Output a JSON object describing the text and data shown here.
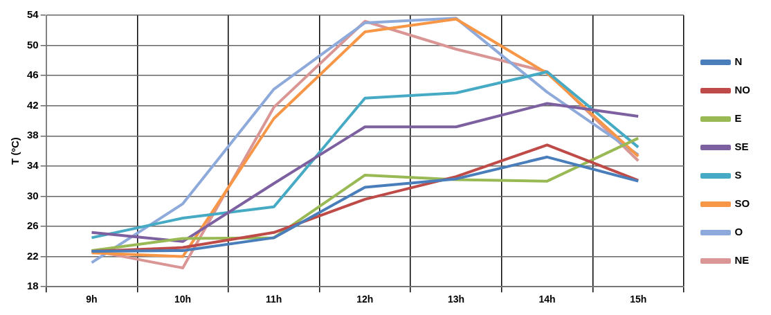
{
  "chart_data": {
    "type": "line",
    "ylabel": "T (ºC)",
    "categories": [
      "9h",
      "10h",
      "11h",
      "12h",
      "13h",
      "14h",
      "15h"
    ],
    "ylim": [
      18,
      54
    ],
    "yticks": [
      18,
      22,
      26,
      30,
      34,
      38,
      42,
      46,
      50,
      54
    ],
    "grid": true,
    "legend": "right",
    "marker": "none",
    "line_style": "solid",
    "series": [
      {
        "name": "N",
        "color": "#4a7ebb",
        "values": [
          22.7,
          22.8,
          24.5,
          31.2,
          32.3,
          35.2,
          32.0
        ]
      },
      {
        "name": "NO",
        "color": "#be4b48",
        "values": [
          22.7,
          23.2,
          25.2,
          29.6,
          32.6,
          36.8,
          32.1
        ]
      },
      {
        "name": "E",
        "color": "#98b954",
        "values": [
          22.8,
          24.4,
          24.5,
          32.8,
          32.2,
          32.0,
          37.7
        ]
      },
      {
        "name": "SE",
        "color": "#7d60a0",
        "values": [
          25.2,
          24.0,
          31.7,
          39.2,
          39.2,
          42.3,
          40.6
        ]
      },
      {
        "name": "S",
        "color": "#46aac5",
        "values": [
          24.5,
          27.1,
          28.6,
          43.0,
          43.7,
          46.5,
          36.5
        ]
      },
      {
        "name": "SO",
        "color": "#f79646",
        "values": [
          22.5,
          22.0,
          40.3,
          51.8,
          53.5,
          46.3,
          35.3
        ]
      },
      {
        "name": "O",
        "color": "#8eaadb",
        "values": [
          21.2,
          29.0,
          44.2,
          53.0,
          53.6,
          43.8,
          35.5
        ]
      },
      {
        "name": "NE",
        "color": "#d99694",
        "values": [
          22.8,
          20.5,
          41.8,
          53.2,
          49.5,
          46.5,
          34.7
        ]
      }
    ]
  }
}
